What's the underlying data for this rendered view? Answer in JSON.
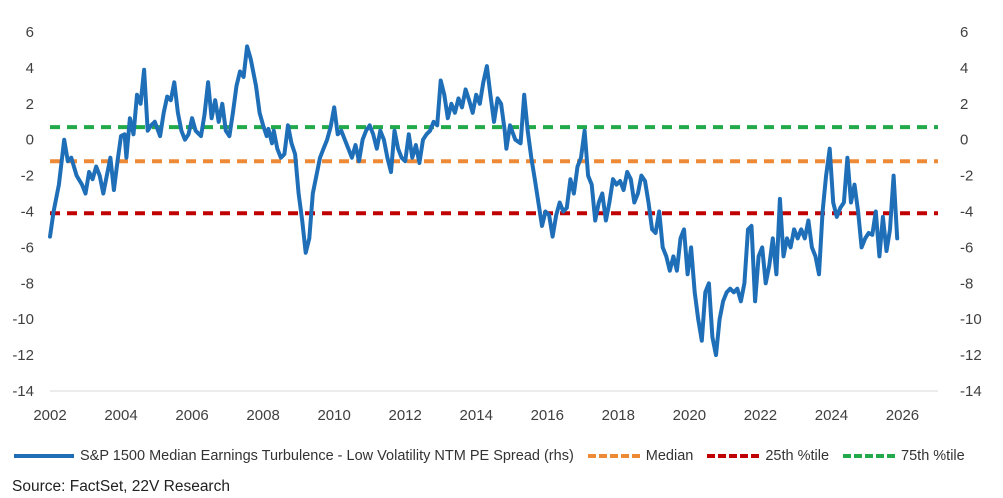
{
  "chart_data": {
    "type": "line",
    "title": "",
    "xlabel": "",
    "ylabel": "",
    "xlim": [
      2002,
      2027
    ],
    "ylim": [
      -14,
      6
    ],
    "x_ticks": [
      "2002",
      "2004",
      "2006",
      "2008",
      "2010",
      "2012",
      "2014",
      "2016",
      "2018",
      "2020",
      "2022",
      "2024",
      "2026"
    ],
    "y_ticks_left": [
      "6",
      "4",
      "2",
      "0",
      "-2",
      "-4",
      "-6",
      "-8",
      "-10",
      "-12",
      "-14"
    ],
    "y_ticks_right": [
      "6",
      "4",
      "2",
      "0",
      "-2",
      "-4",
      "-6",
      "-8",
      "-10",
      "-12",
      "-14"
    ],
    "grid": false,
    "series": [
      {
        "name": "S&P 1500 Median Earnings Turbulence - Low Volatility NTM PE Spread (rhs)",
        "color": "#1f6fb8",
        "style": "solid",
        "points": [
          [
            2002.0,
            -5.4
          ],
          [
            2002.1,
            -4.0
          ],
          [
            2002.25,
            -2.5
          ],
          [
            2002.4,
            0.0
          ],
          [
            2002.5,
            -1.2
          ],
          [
            2002.6,
            -1.0
          ],
          [
            2002.75,
            -2.0
          ],
          [
            2002.9,
            -2.5
          ],
          [
            2003.0,
            -3.0
          ],
          [
            2003.1,
            -1.8
          ],
          [
            2003.2,
            -2.2
          ],
          [
            2003.3,
            -1.5
          ],
          [
            2003.4,
            -2.0
          ],
          [
            2003.5,
            -3.0
          ],
          [
            2003.6,
            -2.0
          ],
          [
            2003.7,
            -1.0
          ],
          [
            2003.8,
            -2.8
          ],
          [
            2003.9,
            -1.2
          ],
          [
            2004.0,
            0.2
          ],
          [
            2004.1,
            0.3
          ],
          [
            2004.15,
            -1.0
          ],
          [
            2004.25,
            1.2
          ],
          [
            2004.35,
            0.3
          ],
          [
            2004.45,
            2.5
          ],
          [
            2004.55,
            2.0
          ],
          [
            2004.65,
            3.9
          ],
          [
            2004.75,
            0.5
          ],
          [
            2004.85,
            0.8
          ],
          [
            2004.95,
            1.0
          ],
          [
            2005.1,
            0.2
          ],
          [
            2005.2,
            1.5
          ],
          [
            2005.3,
            2.4
          ],
          [
            2005.4,
            2.2
          ],
          [
            2005.5,
            3.2
          ],
          [
            2005.6,
            1.5
          ],
          [
            2005.7,
            0.5
          ],
          [
            2005.8,
            0.0
          ],
          [
            2005.9,
            0.3
          ],
          [
            2006.0,
            1.2
          ],
          [
            2006.1,
            0.5
          ],
          [
            2006.25,
            0.2
          ],
          [
            2006.35,
            1.4
          ],
          [
            2006.45,
            3.2
          ],
          [
            2006.55,
            1.2
          ],
          [
            2006.65,
            2.2
          ],
          [
            2006.75,
            1.0
          ],
          [
            2006.85,
            2.0
          ],
          [
            2006.95,
            0.5
          ],
          [
            2007.05,
            0.2
          ],
          [
            2007.15,
            1.5
          ],
          [
            2007.25,
            3.0
          ],
          [
            2007.35,
            3.8
          ],
          [
            2007.45,
            3.5
          ],
          [
            2007.55,
            5.2
          ],
          [
            2007.65,
            4.5
          ],
          [
            2007.8,
            3.0
          ],
          [
            2007.9,
            1.5
          ],
          [
            2008.0,
            0.8
          ],
          [
            2008.1,
            0.2
          ],
          [
            2008.15,
            0.6
          ],
          [
            2008.25,
            -0.2
          ],
          [
            2008.3,
            0.5
          ],
          [
            2008.4,
            -0.5
          ],
          [
            2008.5,
            -1.0
          ],
          [
            2008.6,
            -0.8
          ],
          [
            2008.7,
            0.8
          ],
          [
            2008.8,
            -0.2
          ],
          [
            2008.9,
            -0.8
          ],
          [
            2009.0,
            -3.0
          ],
          [
            2009.1,
            -4.5
          ],
          [
            2009.2,
            -6.3
          ],
          [
            2009.3,
            -5.5
          ],
          [
            2009.4,
            -3.0
          ],
          [
            2009.5,
            -2.0
          ],
          [
            2009.6,
            -1.0
          ],
          [
            2009.7,
            -0.5
          ],
          [
            2009.8,
            0.0
          ],
          [
            2009.9,
            0.7
          ],
          [
            2010.0,
            1.8
          ],
          [
            2010.1,
            0.3
          ],
          [
            2010.2,
            0.5
          ],
          [
            2010.3,
            0.0
          ],
          [
            2010.4,
            -0.5
          ],
          [
            2010.5,
            -1.0
          ],
          [
            2010.6,
            -0.3
          ],
          [
            2010.7,
            -1.2
          ],
          [
            2010.8,
            0.0
          ],
          [
            2010.9,
            0.5
          ],
          [
            2011.0,
            0.8
          ],
          [
            2011.1,
            0.3
          ],
          [
            2011.2,
            -0.5
          ],
          [
            2011.3,
            0.5
          ],
          [
            2011.4,
            0.0
          ],
          [
            2011.5,
            -1.0
          ],
          [
            2011.6,
            -1.8
          ],
          [
            2011.7,
            0.5
          ],
          [
            2011.8,
            -0.5
          ],
          [
            2011.9,
            -1.0
          ],
          [
            2012.0,
            -1.2
          ],
          [
            2012.1,
            0.3
          ],
          [
            2012.2,
            -1.0
          ],
          [
            2012.3,
            -0.3
          ],
          [
            2012.4,
            -1.3
          ],
          [
            2012.5,
            0.0
          ],
          [
            2012.6,
            0.3
          ],
          [
            2012.7,
            0.5
          ],
          [
            2012.8,
            1.0
          ],
          [
            2012.9,
            0.8
          ],
          [
            2013.0,
            3.3
          ],
          [
            2013.1,
            2.5
          ],
          [
            2013.2,
            1.2
          ],
          [
            2013.3,
            2.0
          ],
          [
            2013.4,
            1.5
          ],
          [
            2013.5,
            2.3
          ],
          [
            2013.6,
            1.8
          ],
          [
            2013.7,
            2.8
          ],
          [
            2013.8,
            2.2
          ],
          [
            2013.9,
            1.5
          ],
          [
            2014.0,
            2.5
          ],
          [
            2014.1,
            2.0
          ],
          [
            2014.2,
            3.2
          ],
          [
            2014.3,
            4.1
          ],
          [
            2014.4,
            2.5
          ],
          [
            2014.5,
            1.0
          ],
          [
            2014.6,
            2.3
          ],
          [
            2014.7,
            2.0
          ],
          [
            2014.8,
            0.5
          ],
          [
            2014.85,
            -0.5
          ],
          [
            2014.95,
            0.8
          ],
          [
            2015.1,
            0.0
          ],
          [
            2015.25,
            -0.2
          ],
          [
            2015.35,
            2.5
          ],
          [
            2015.45,
            0.5
          ],
          [
            2015.55,
            -1.0
          ],
          [
            2015.65,
            -2.2
          ],
          [
            2015.75,
            -3.5
          ],
          [
            2015.85,
            -4.8
          ],
          [
            2015.95,
            -4.0
          ],
          [
            2016.05,
            -4.2
          ],
          [
            2016.15,
            -5.4
          ],
          [
            2016.25,
            -4.2
          ],
          [
            2016.35,
            -3.5
          ],
          [
            2016.45,
            -4.0
          ],
          [
            2016.55,
            -3.8
          ],
          [
            2016.65,
            -2.2
          ],
          [
            2016.75,
            -3.0
          ],
          [
            2016.85,
            -1.5
          ],
          [
            2016.95,
            -1.0
          ],
          [
            2017.05,
            0.5
          ],
          [
            2017.15,
            -2.0
          ],
          [
            2017.25,
            -2.5
          ],
          [
            2017.35,
            -4.5
          ],
          [
            2017.45,
            -3.5
          ],
          [
            2017.55,
            -3.0
          ],
          [
            2017.65,
            -4.5
          ],
          [
            2017.75,
            -3.5
          ],
          [
            2017.85,
            -2.2
          ],
          [
            2017.95,
            -2.5
          ],
          [
            2018.05,
            -2.3
          ],
          [
            2018.15,
            -2.8
          ],
          [
            2018.25,
            -1.8
          ],
          [
            2018.35,
            -2.2
          ],
          [
            2018.45,
            -3.5
          ],
          [
            2018.55,
            -3.0
          ],
          [
            2018.65,
            -2.0
          ],
          [
            2018.75,
            -2.3
          ],
          [
            2018.85,
            -3.5
          ],
          [
            2018.95,
            -5.0
          ],
          [
            2019.05,
            -5.2
          ],
          [
            2019.15,
            -4.0
          ],
          [
            2019.25,
            -6.0
          ],
          [
            2019.35,
            -6.5
          ],
          [
            2019.45,
            -7.3
          ],
          [
            2019.55,
            -6.5
          ],
          [
            2019.65,
            -7.3
          ],
          [
            2019.75,
            -5.5
          ],
          [
            2019.85,
            -5.0
          ],
          [
            2019.95,
            -7.5
          ],
          [
            2020.05,
            -6.0
          ],
          [
            2020.15,
            -8.5
          ],
          [
            2020.25,
            -10.0
          ],
          [
            2020.35,
            -11.2
          ],
          [
            2020.45,
            -8.5
          ],
          [
            2020.55,
            -8.0
          ],
          [
            2020.65,
            -11.0
          ],
          [
            2020.75,
            -12.0
          ],
          [
            2020.85,
            -10.0
          ],
          [
            2020.95,
            -9.0
          ],
          [
            2021.05,
            -8.5
          ],
          [
            2021.15,
            -8.3
          ],
          [
            2021.25,
            -8.5
          ],
          [
            2021.35,
            -8.3
          ],
          [
            2021.45,
            -9.0
          ],
          [
            2021.55,
            -8.0
          ],
          [
            2021.65,
            -5.0
          ],
          [
            2021.75,
            -4.8
          ],
          [
            2021.85,
            -9.0
          ],
          [
            2021.95,
            -6.5
          ],
          [
            2022.05,
            -6.0
          ],
          [
            2022.15,
            -8.0
          ],
          [
            2022.25,
            -7.0
          ],
          [
            2022.35,
            -5.5
          ],
          [
            2022.45,
            -7.5
          ],
          [
            2022.55,
            -3.3
          ],
          [
            2022.65,
            -6.5
          ],
          [
            2022.75,
            -5.5
          ],
          [
            2022.85,
            -6.0
          ],
          [
            2022.95,
            -5.0
          ],
          [
            2023.05,
            -5.5
          ],
          [
            2023.15,
            -5.0
          ],
          [
            2023.25,
            -5.5
          ],
          [
            2023.35,
            -4.5
          ],
          [
            2023.45,
            -6.0
          ],
          [
            2023.55,
            -6.5
          ],
          [
            2023.65,
            -7.5
          ],
          [
            2023.75,
            -4.0
          ],
          [
            2023.85,
            -2.0
          ],
          [
            2023.95,
            -0.5
          ],
          [
            2024.05,
            -3.5
          ],
          [
            2024.15,
            -4.3
          ],
          [
            2024.25,
            -3.8
          ],
          [
            2024.35,
            -3.5
          ],
          [
            2024.45,
            -1.0
          ],
          [
            2024.55,
            -3.5
          ],
          [
            2024.65,
            -2.5
          ],
          [
            2024.75,
            -4.0
          ],
          [
            2024.85,
            -6.0
          ],
          [
            2024.95,
            -5.5
          ],
          [
            2025.05,
            -5.2
          ],
          [
            2025.15,
            -5.3
          ],
          [
            2025.25,
            -4.0
          ],
          [
            2025.35,
            -6.5
          ],
          [
            2025.45,
            -4.3
          ],
          [
            2025.55,
            -6.2
          ],
          [
            2025.65,
            -5.0
          ],
          [
            2025.75,
            -2.0
          ],
          [
            2025.85,
            -5.5
          ]
        ]
      },
      {
        "name": "Median",
        "color": "#ee8a35",
        "style": "dashed",
        "value": -1.2
      },
      {
        "name": "25th %tile",
        "color": "#c00000",
        "style": "dashed",
        "value": -4.1
      },
      {
        "name": "75th %tile",
        "color": "#22a94a",
        "style": "dashed",
        "value": 0.7
      }
    ],
    "legend": {
      "placement": "bottom",
      "entries": [
        "S&P 1500 Median Earnings Turbulence - Low Volatility NTM PE Spread (rhs)",
        "Median",
        "25th %tile",
        "75th %tile"
      ]
    }
  },
  "source_text": "Source: FactSet, 22V Research"
}
